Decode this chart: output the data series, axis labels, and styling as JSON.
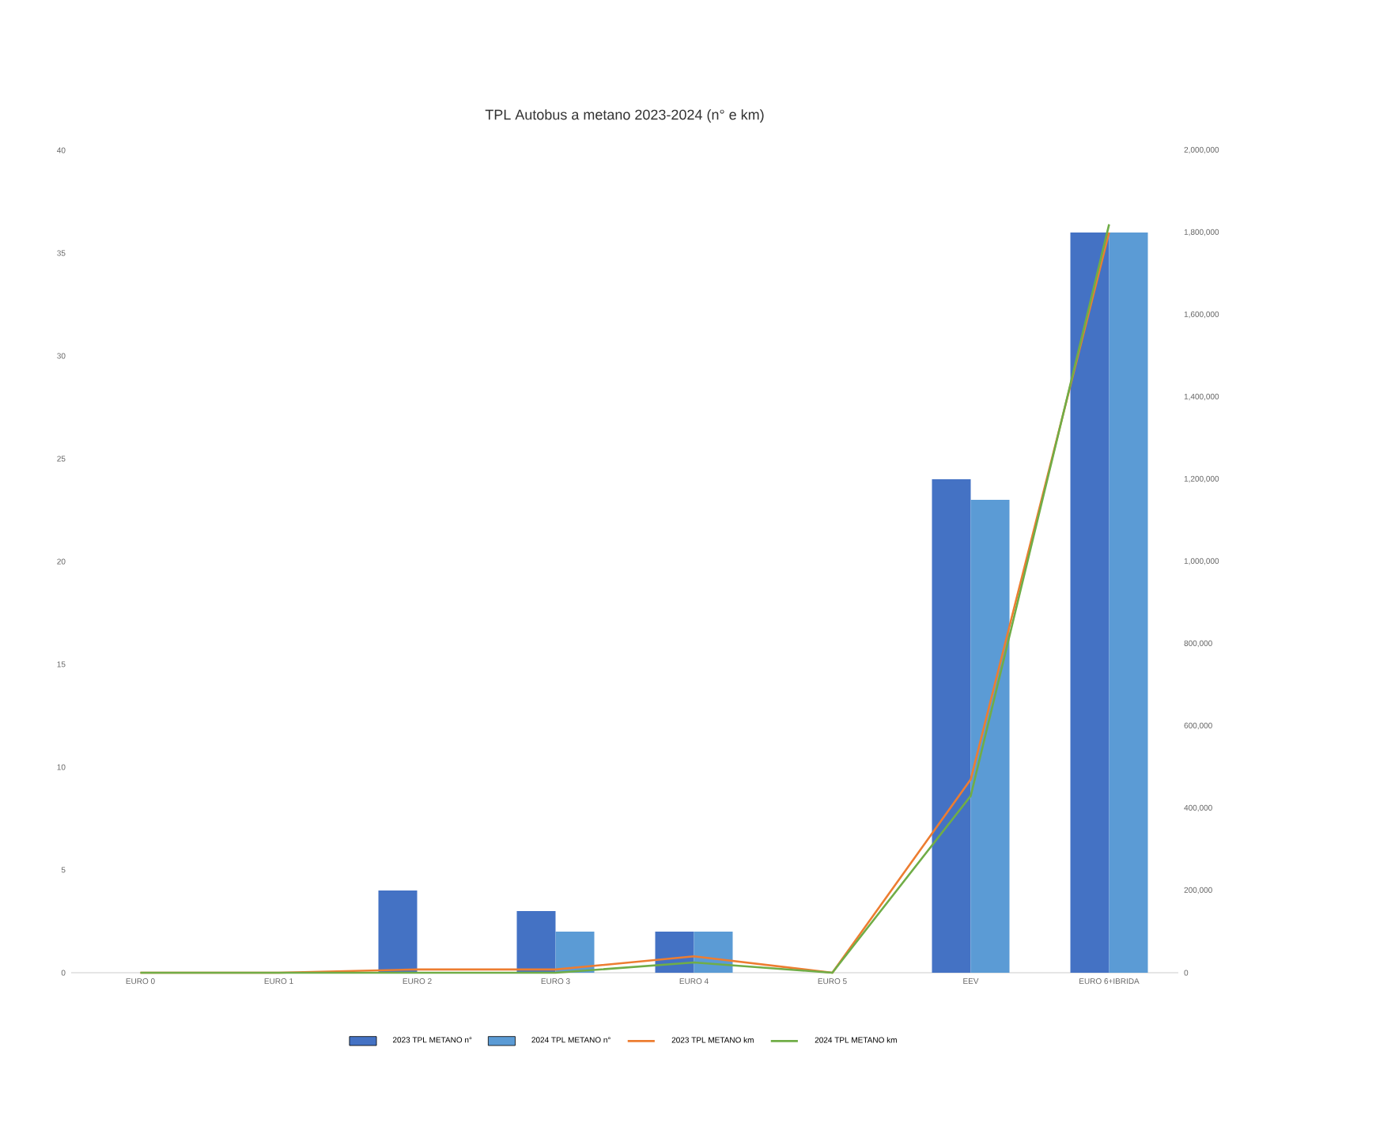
{
  "chart_data": {
    "type": "bar",
    "title": "TPL Autobus a metano 2023-2024 (n° e km)",
    "categories": [
      "EURO 0",
      "EURO 1",
      "EURO 2",
      "EURO 3",
      "EURO 4",
      "EURO 5",
      "EEV",
      "EURO 6+IBRIDA"
    ],
    "series": [
      {
        "name": "2023 TPL METANO n°",
        "color": "#4472c4",
        "values": [
          0,
          0,
          4,
          3,
          2,
          0,
          24,
          36
        ]
      },
      {
        "name": "2024 TPL METANO n°",
        "color": "#5b9bd5",
        "values": [
          0,
          0,
          0,
          2,
          2,
          0,
          23,
          36
        ]
      },
      {
        "name": "2023 TPL METANO km",
        "type": "line",
        "axis": "y2",
        "color": "#ed7d31",
        "values": [
          0,
          0,
          8000,
          8000,
          40000,
          0,
          470000,
          1800000
        ]
      },
      {
        "name": "2024 TPL METANO km",
        "type": "line",
        "axis": "y2",
        "color": "#70ad47",
        "values": [
          0,
          0,
          0,
          0,
          25000,
          0,
          430000,
          1820000
        ]
      }
    ],
    "ylim": [
      0,
      40
    ],
    "yticks": [
      0,
      5,
      10,
      15,
      20,
      25,
      30,
      35,
      40
    ],
    "y2lim": [
      0,
      2000000
    ],
    "y2ticks": [
      {
        "value": 0,
        "label": "0"
      },
      {
        "value": 200000,
        "label": "200,000"
      },
      {
        "value": 400000,
        "label": "400,000"
      },
      {
        "value": 600000,
        "label": "600,000"
      },
      {
        "value": 800000,
        "label": "800,000"
      },
      {
        "value": 1000000,
        "label": "1,000,000"
      },
      {
        "value": 1200000,
        "label": "1,200,000"
      },
      {
        "value": 1400000,
        "label": "1,400,000"
      },
      {
        "value": 1600000,
        "label": "1,600,000"
      },
      {
        "value": 1800000,
        "label": "1,800,000"
      },
      {
        "value": 2000000,
        "label": "2,000,000"
      }
    ],
    "legend": "bottom"
  }
}
